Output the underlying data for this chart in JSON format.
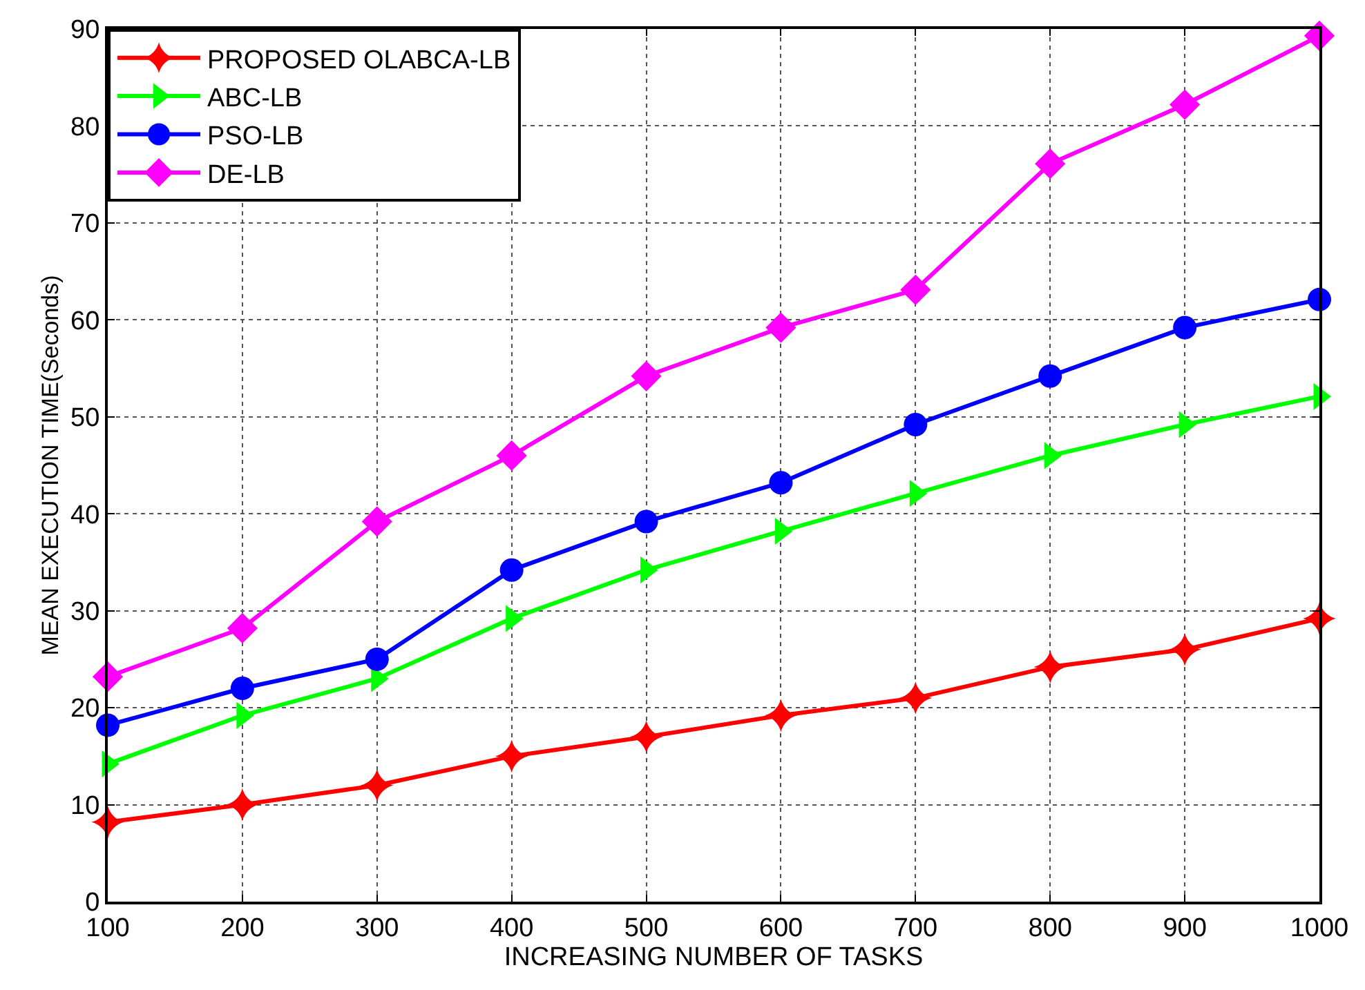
{
  "chart_data": {
    "type": "line",
    "xlabel": "INCREASING NUMBER OF TASKS",
    "ylabel": "MEAN EXECUTION TIME(Seconds)",
    "x": [
      100,
      200,
      300,
      400,
      500,
      600,
      700,
      800,
      900,
      1000
    ],
    "series": [
      {
        "name": "PROPOSED OLABCA-LB",
        "color": "#ff0000",
        "marker": "star",
        "values": [
          8.2,
          10,
          12,
          15,
          17,
          19.2,
          21,
          24.2,
          26,
          29.2
        ]
      },
      {
        "name": "ABC-LB",
        "color": "#00ff00",
        "marker": "triangle",
        "values": [
          14.2,
          19.2,
          23,
          29.2,
          34.2,
          38.2,
          42.1,
          46,
          49.2,
          52.1
        ]
      },
      {
        "name": "PSO-LB",
        "color": "#0000ff",
        "marker": "circle",
        "values": [
          18.2,
          22,
          25,
          34.2,
          39.2,
          43.2,
          49.2,
          54.2,
          59.2,
          62.1
        ]
      },
      {
        "name": "DE-LB",
        "color": "#ff00ff",
        "marker": "diamond",
        "values": [
          23.2,
          28.2,
          39.2,
          46,
          54.2,
          59.2,
          63.1,
          76.1,
          82.2,
          89.3
        ]
      }
    ],
    "xlim": [
      100,
      1000
    ],
    "xticks": [
      100,
      200,
      300,
      400,
      500,
      600,
      700,
      800,
      900,
      1000
    ],
    "ylim": [
      0,
      90
    ],
    "yticks": [
      0,
      10,
      20,
      30,
      40,
      50,
      60,
      70,
      80,
      90
    ],
    "grid": true,
    "legend": "top left",
    "line_style": "solid"
  }
}
